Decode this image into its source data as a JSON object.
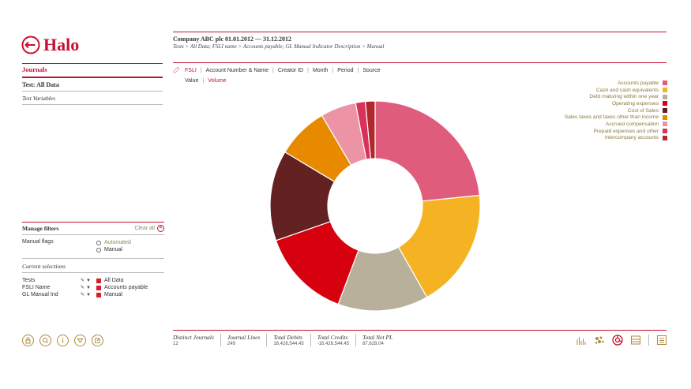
{
  "app": {
    "name": "Halo"
  },
  "header": {
    "title": "Company ABC plc 01.01.2012 — 31.12.2012",
    "breadcrumb": "Tests > All Data; FSLI name > Accounts payable; GL Manual Indicator Description > Manual"
  },
  "sidebar": {
    "journals": "Journals",
    "test": "Test: All Data",
    "variables": "Test Variables"
  },
  "filters": {
    "title": "Manage filters",
    "clear_all": "Clear all",
    "manual_flags_label": "Manual flags",
    "options": [
      "Automated",
      "Manual"
    ],
    "current_selections": "Current selections",
    "selections": [
      {
        "label": "Tests",
        "value": "All Data"
      },
      {
        "label": "FSLI Name",
        "value": "Accounts payable"
      },
      {
        "label": "GL Manual Ind",
        "value": "Manual"
      }
    ]
  },
  "tabs": [
    "FSLI",
    "Account Number & Name",
    "Creator ID",
    "Month",
    "Period",
    "Source"
  ],
  "subtabs": [
    "Value",
    "Volume"
  ],
  "chart_data": {
    "type": "pie",
    "donut": true,
    "categories": [
      "Accounts payable",
      "Cash and cash equivalents",
      "Debt maturing within one year",
      "Operating expenses",
      "Cost of Sales",
      "Sales taxes and taxes other than income",
      "Accrued compensation",
      "Prepaid expenses and other",
      "Intercompany accounts"
    ],
    "values": [
      23.5,
      18.5,
      14,
      14,
      14,
      8,
      5.5,
      1.5,
      1.5
    ],
    "colors": [
      "#e05c7c",
      "#f5b324",
      "#b8b09a",
      "#d6000f",
      "#632221",
      "#e88a00",
      "#ec93a6",
      "#d8325a",
      "#b0272c"
    ],
    "legend_position": "top-right"
  },
  "stats": [
    {
      "label": "Distinct Journals",
      "value": "12"
    },
    {
      "label": "Journal Lines",
      "value": "249"
    },
    {
      "label": "Total Debits",
      "value": "16,426,544.45"
    },
    {
      "label": "Total Credits",
      "value": "-16,426,544.45"
    },
    {
      "label": "Total Net PL",
      "value": "87,628.04"
    }
  ],
  "icons": {
    "bottom_left": [
      "lock-icon",
      "search-icon",
      "info-icon",
      "filter-icon",
      "edit-icon"
    ],
    "bottom_right": [
      "bar-chart-icon",
      "scatter-icon",
      "pie-chart-icon",
      "table-icon",
      "list-icon"
    ]
  }
}
